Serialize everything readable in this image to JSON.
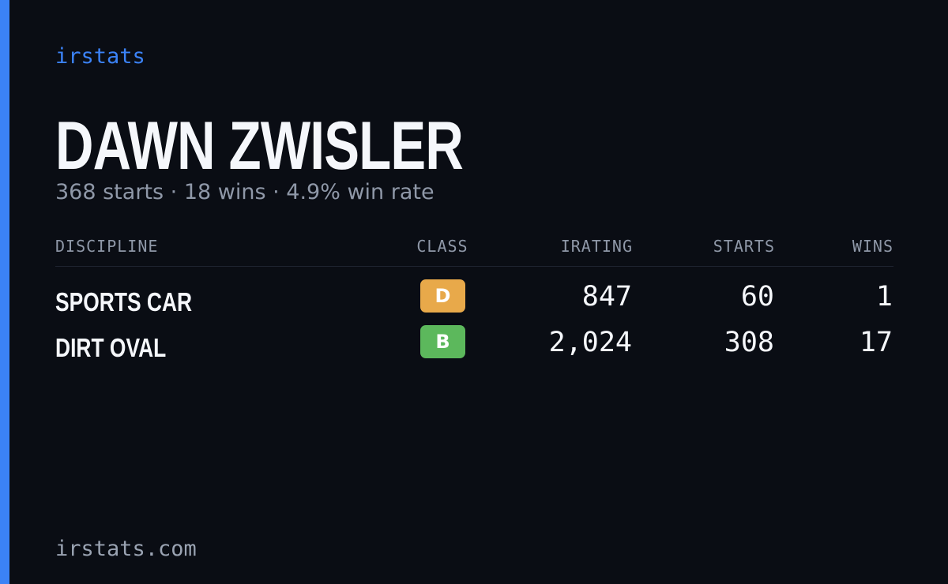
{
  "header": {
    "brand": "irstats",
    "name": "DAWN ZWISLER",
    "summary": "368 starts · 18 wins · 4.9% win rate"
  },
  "table": {
    "columns": [
      "DISCIPLINE",
      "CLASS",
      "IRATING",
      "STARTS",
      "WINS"
    ],
    "rows": [
      [
        "SPORTS CAR",
        "D",
        "847",
        "60",
        "1"
      ],
      [
        "DIRT OVAL",
        "B",
        "2,024",
        "308",
        "17"
      ]
    ]
  },
  "footer": {
    "site": "irstats.com"
  }
}
